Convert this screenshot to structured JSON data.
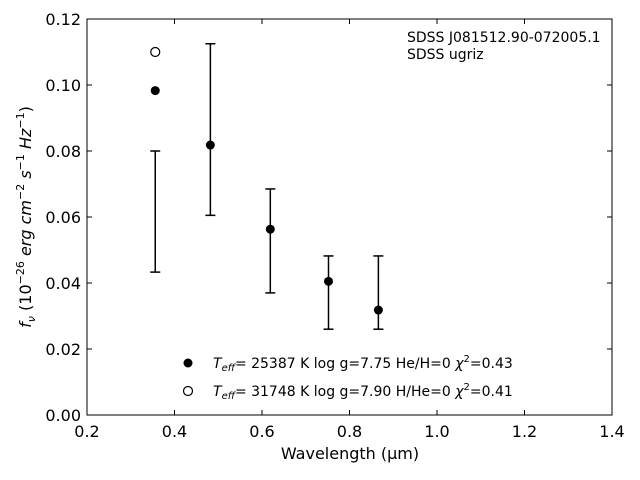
{
  "chart_data": {
    "type": "scatter",
    "xlabel": "Wavelength (μm)",
    "ylabel": {
      "prefix": "f",
      "sub": "ν",
      "paren_open": " (10",
      "exp1": "−26",
      "unit_a": " erg cm",
      "exp2": "−2",
      "unit_b": " s",
      "exp3": "−1",
      "unit_c": " Hz",
      "exp4": "−1",
      "paren_close": ")"
    },
    "xlim": [
      0.2,
      1.4
    ],
    "ylim": [
      0.0,
      0.12
    ],
    "xticks": [
      0.2,
      0.4,
      0.6,
      0.8,
      1.0,
      1.2,
      1.4
    ],
    "yticks": [
      0.0,
      0.02,
      0.04,
      0.06,
      0.08,
      0.1,
      0.12
    ],
    "xtick_labels": [
      "0.2",
      "0.4",
      "0.6",
      "0.8",
      "1.0",
      "1.2",
      "1.4"
    ],
    "ytick_labels": [
      "0.00",
      "0.02",
      "0.04",
      "0.06",
      "0.08",
      "0.10",
      "0.12"
    ],
    "annotation": [
      "SDSS J081512.90-072005.1",
      "SDSS ugriz"
    ],
    "observed": {
      "x": [
        0.356,
        0.482,
        0.619,
        0.752,
        0.866
      ],
      "y_low": [
        0.0433,
        0.0605,
        0.037,
        0.026,
        0.026
      ],
      "y_high": [
        0.08,
        0.1125,
        0.0685,
        0.0482,
        0.0482
      ]
    },
    "series": [
      {
        "marker": "filled",
        "x": [
          0.356,
          0.482,
          0.619,
          0.752,
          0.866
        ],
        "y": [
          0.0983,
          0.0818,
          0.0563,
          0.0405,
          0.0318
        ],
        "legend": {
          "teff_sym": "T",
          "teff_sub": "eff",
          "text": "= 25387 K  log g=7.75  He/H=0  ",
          "chi": "χ",
          "chi_sup": "2",
          "chi_val": "=0.43"
        }
      },
      {
        "marker": "open",
        "x": [
          0.356
        ],
        "y": [
          0.11
        ],
        "legend": {
          "teff_sym": "T",
          "teff_sub": "eff",
          "text": "= 31748 K  log g=7.90  H/He=0  ",
          "chi": "χ",
          "chi_sup": "2",
          "chi_val": "=0.41"
        }
      }
    ],
    "legend_position": "bottom-center"
  }
}
